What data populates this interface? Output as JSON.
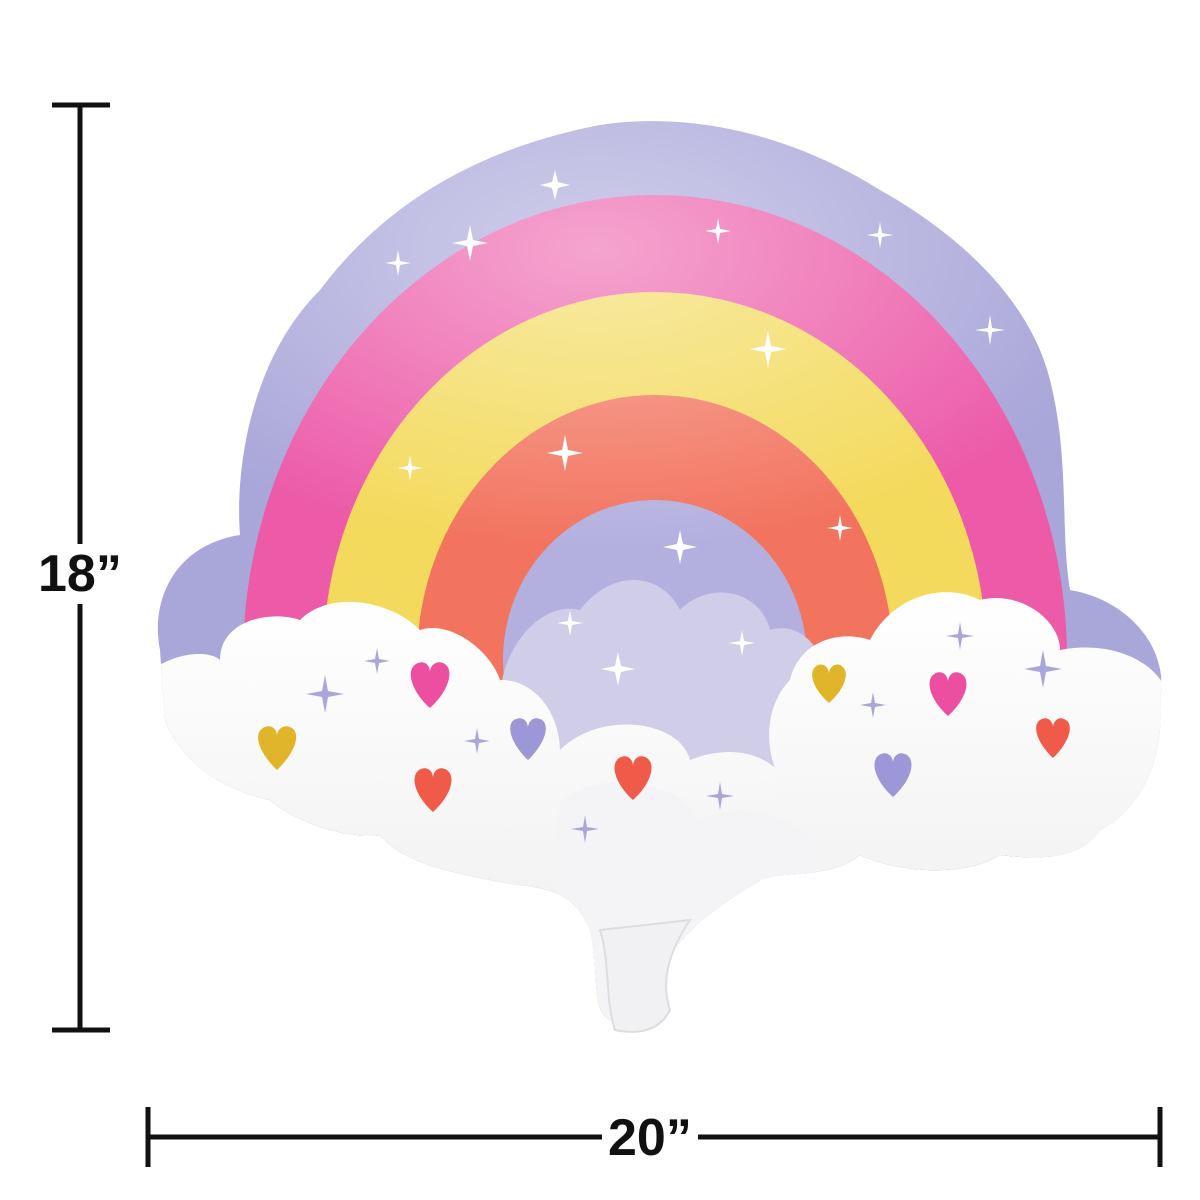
{
  "product": {
    "height_label": "18”",
    "width_label": "20”"
  },
  "colors": {
    "background_purple": "#a9a6d9",
    "pink": "#ec5aa8",
    "yellow": "#f3da5c",
    "coral": "#f2735e",
    "inner_purple": "#b3b0df",
    "cloud": "#ffffff",
    "heart_pink": "#ec4fa0",
    "heart_gold": "#e0b52a",
    "heart_red": "#f05a48",
    "heart_purple": "#9d97d8",
    "dimension_line": "#111111"
  }
}
